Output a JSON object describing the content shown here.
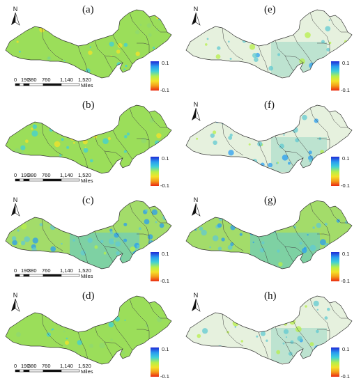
{
  "colors": {
    "ramp": [
      "#1f2bd6",
      "#2a9df0",
      "#3fd0d8",
      "#b7ef4a",
      "#f4e22a",
      "#f59b1b",
      "#ea2a12"
    ],
    "fill_green": "#9bde5a",
    "fill_pale": "#e6f1de",
    "fill_mid_blue": "#61c9d2"
  },
  "scalebar": {
    "ticks": [
      "0",
      "190",
      "380",
      "760",
      "1,140",
      "1,520"
    ],
    "unit": "Miles"
  },
  "legend": {
    "max": "0.1",
    "min": "-0.1"
  },
  "north": "N",
  "panels": [
    {
      "label": "(a)",
      "style": "green",
      "north": true,
      "scale": true
    },
    {
      "label": "(b)",
      "style": "green",
      "north": false,
      "scale": true
    },
    {
      "label": "(c)",
      "style": "mixed",
      "north": true,
      "scale": true
    },
    {
      "label": "(d)",
      "style": "green",
      "north": true,
      "scale": true
    },
    {
      "label": "(e)",
      "style": "pale",
      "north": true,
      "scale": false
    },
    {
      "label": "(f)",
      "style": "pale",
      "north": true,
      "scale": false
    },
    {
      "label": "(g)",
      "style": "mixed",
      "north": true,
      "scale": false
    },
    {
      "label": "(h)",
      "style": "pale",
      "north": true,
      "scale": false
    }
  ]
}
